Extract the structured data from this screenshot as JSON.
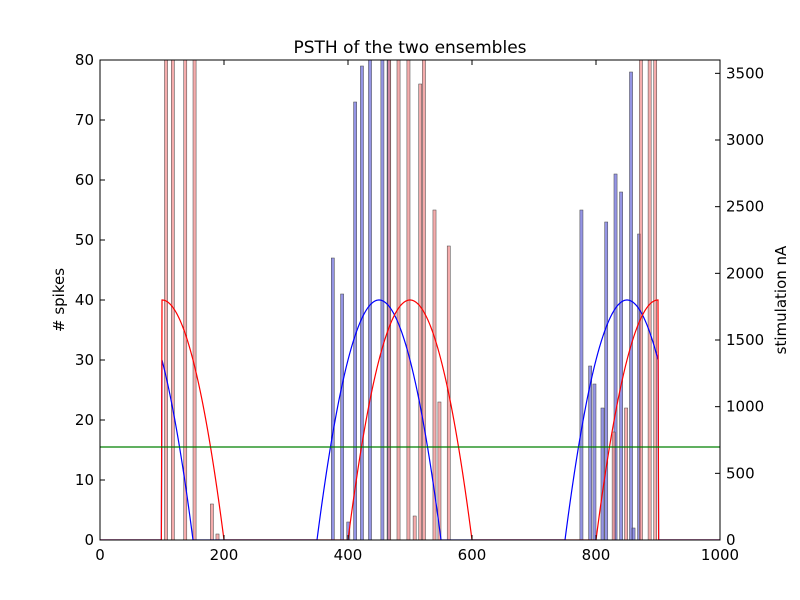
{
  "chart_data": {
    "type": "bar",
    "title": "PSTH of the two ensembles",
    "xlabel": "",
    "ylabel": "# spikes",
    "y2label": "stimulation nA",
    "xlim": [
      0,
      1000
    ],
    "ylim": [
      0,
      80
    ],
    "y2lim": [
      0,
      3600
    ],
    "xticks": [
      "0",
      "200",
      "400",
      "600",
      "800",
      "1000"
    ],
    "yticks": [
      "0",
      "10",
      "20",
      "30",
      "40",
      "50",
      "60",
      "70",
      "80"
    ],
    "y2ticks": [
      "0",
      "500",
      "1000",
      "1500",
      "2000",
      "2500",
      "3000",
      "3500"
    ],
    "grid": false,
    "legend": "none",
    "bar_width": 5,
    "series": [
      {
        "color": "#5b5bd6",
        "bars": [
          {
            "x": 373,
            "y": 47
          },
          {
            "x": 388,
            "y": 41
          },
          {
            "x": 398,
            "y": 3
          },
          {
            "x": 409,
            "y": 73
          },
          {
            "x": 420,
            "y": 79
          },
          {
            "x": 433,
            "y": 80
          },
          {
            "x": 453,
            "y": 80
          },
          {
            "x": 463,
            "y": 80
          },
          {
            "x": 774,
            "y": 55
          },
          {
            "x": 788,
            "y": 29
          },
          {
            "x": 795,
            "y": 26
          },
          {
            "x": 808,
            "y": 22
          },
          {
            "x": 814,
            "y": 53
          },
          {
            "x": 829,
            "y": 61
          },
          {
            "x": 838,
            "y": 58
          },
          {
            "x": 854,
            "y": 78
          },
          {
            "x": 858,
            "y": 2
          },
          {
            "x": 867,
            "y": 51
          }
        ]
      },
      {
        "color": "#f08080",
        "bars": [
          {
            "x": 104,
            "y": 80
          },
          {
            "x": 115,
            "y": 80
          },
          {
            "x": 135,
            "y": 80
          },
          {
            "x": 150,
            "y": 80
          },
          {
            "x": 178,
            "y": 6
          },
          {
            "x": 187,
            "y": 1
          },
          {
            "x": 464,
            "y": 80
          },
          {
            "x": 479,
            "y": 80
          },
          {
            "x": 495,
            "y": 80
          },
          {
            "x": 505,
            "y": 4
          },
          {
            "x": 514,
            "y": 76
          },
          {
            "x": 520,
            "y": 80
          },
          {
            "x": 537,
            "y": 55
          },
          {
            "x": 545,
            "y": 23
          },
          {
            "x": 560,
            "y": 49
          },
          {
            "x": 826,
            "y": 18
          },
          {
            "x": 846,
            "y": 22
          },
          {
            "x": 870,
            "y": 80
          },
          {
            "x": 884,
            "y": 80
          },
          {
            "x": 893,
            "y": 80
          }
        ]
      }
    ],
    "stimulus_curves": [
      {
        "color": "#0000ff",
        "centers": [
          50,
          450,
          850
        ],
        "peak": 1800,
        "halfwidth": 100,
        "start": 100,
        "end": 900
      },
      {
        "color": "#ff0000",
        "centers": [
          100,
          500,
          900
        ],
        "peak": 1800,
        "halfwidth": 100,
        "start": 100,
        "end": 900
      }
    ],
    "hline": {
      "color": "#008000",
      "y": 15.5
    }
  }
}
